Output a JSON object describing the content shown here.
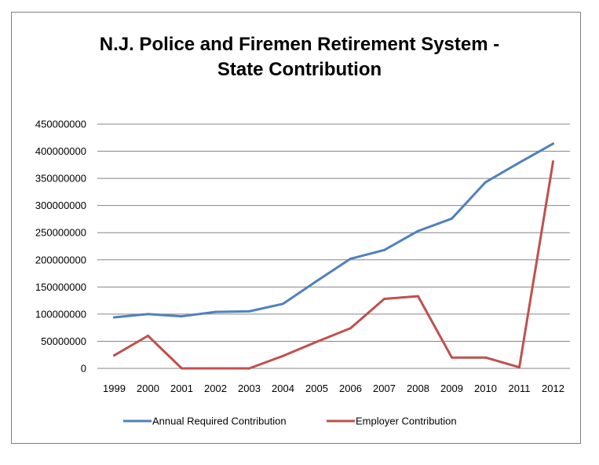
{
  "chart_data": {
    "type": "line",
    "title": "N.J. Police and Firemen Retirement System -",
    "subtitle": "State Contribution",
    "xlabel": "",
    "ylabel": "",
    "categories": [
      "1999",
      "2000",
      "2001",
      "2002",
      "2003",
      "2004",
      "2005",
      "2006",
      "2007",
      "2008",
      "2009",
      "2010",
      "2011",
      "2012"
    ],
    "ylim": [
      0,
      450000000
    ],
    "yticks": [
      0,
      50000000,
      100000000,
      150000000,
      200000000,
      250000000,
      300000000,
      350000000,
      400000000,
      450000000
    ],
    "ytick_labels": [
      "0",
      "50000000",
      "100000000",
      "150000000",
      "200000000",
      "250000000",
      "300000000",
      "350000000",
      "400000000",
      "450000000"
    ],
    "grid": true,
    "legend_position": "bottom",
    "series": [
      {
        "name": "Annual Required Contribution",
        "color": "#4f81bd",
        "values": [
          94000000,
          100000000,
          96000000,
          104000000,
          105000000,
          119000000,
          161000000,
          202000000,
          218000000,
          253000000,
          276000000,
          343000000,
          379000000,
          414000000
        ]
      },
      {
        "name": "Employer Contribution",
        "color": "#c0504d",
        "values": [
          24000000,
          60000000,
          0,
          0,
          0,
          23000000,
          49000000,
          74000000,
          128000000,
          133000000,
          20000000,
          20000000,
          2000000,
          381000000
        ]
      }
    ]
  }
}
